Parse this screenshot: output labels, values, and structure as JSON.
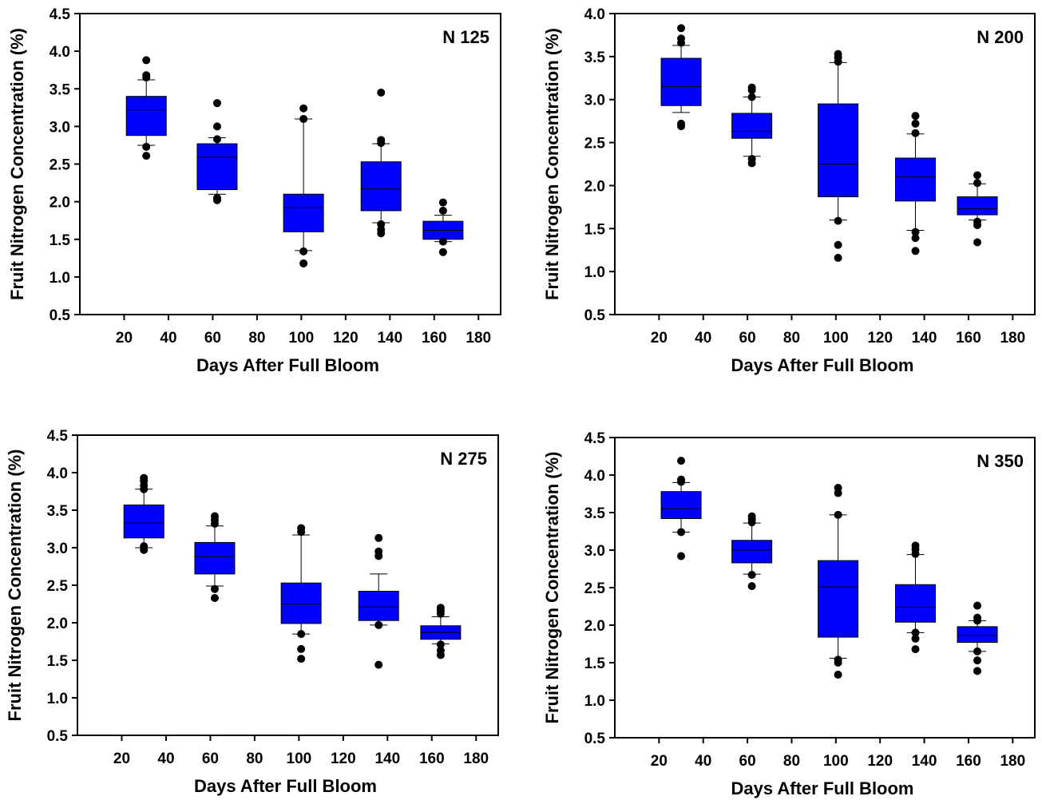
{
  "chart_data": [
    {
      "type": "box",
      "title": "N 125",
      "xlabel": "Days After Full Bloom",
      "ylabel": "Fruit Nitrogen Concentration (%)",
      "xlim": [
        0,
        190
      ],
      "ylim": [
        0.5,
        4.5
      ],
      "xticks": [
        20,
        40,
        60,
        80,
        100,
        120,
        140,
        160,
        180
      ],
      "yticks": [
        0.5,
        1.0,
        1.5,
        2.0,
        2.5,
        3.0,
        3.5,
        4.0,
        4.5
      ],
      "box_color": "#0000ff",
      "boxes": [
        {
          "x": 30,
          "q1": 2.88,
          "median": 3.22,
          "q3": 3.4,
          "whisker_low": 2.75,
          "whisker_high": 3.62,
          "outliers": [
            2.61,
            2.73,
            3.65,
            3.68,
            3.88
          ]
        },
        {
          "x": 62,
          "q1": 2.16,
          "median": 2.59,
          "q3": 2.77,
          "whisker_low": 2.1,
          "whisker_high": 2.85,
          "outliers": [
            2.02,
            2.05,
            2.83,
            3.0,
            3.31
          ]
        },
        {
          "x": 101,
          "q1": 1.6,
          "median": 1.92,
          "q3": 2.1,
          "whisker_low": 1.35,
          "whisker_high": 3.1,
          "outliers": [
            1.18,
            1.34,
            3.1,
            3.24
          ]
        },
        {
          "x": 136,
          "q1": 1.88,
          "median": 2.17,
          "q3": 2.53,
          "whisker_low": 1.72,
          "whisker_high": 2.77,
          "outliers": [
            1.58,
            1.63,
            1.7,
            2.78,
            2.82,
            3.45
          ]
        },
        {
          "x": 164,
          "q1": 1.5,
          "median": 1.62,
          "q3": 1.74,
          "whisker_low": 1.47,
          "whisker_high": 1.82,
          "outliers": [
            1.33,
            1.47,
            1.88,
            1.99
          ]
        }
      ]
    },
    {
      "type": "box",
      "title": "N 200",
      "xlabel": "Days After Full Bloom",
      "ylabel": "Fruit Nitrogen Concentration (%)",
      "xlim": [
        0,
        190
      ],
      "ylim": [
        0.5,
        4.0
      ],
      "xticks": [
        20,
        40,
        60,
        80,
        100,
        120,
        140,
        160,
        180
      ],
      "yticks": [
        0.5,
        1.0,
        1.5,
        2.0,
        2.5,
        3.0,
        3.5,
        4.0
      ],
      "box_color": "#0000ff",
      "boxes": [
        {
          "x": 30,
          "q1": 2.93,
          "median": 3.15,
          "q3": 3.48,
          "whisker_low": 2.85,
          "whisker_high": 3.63,
          "outliers": [
            2.69,
            2.72,
            3.66,
            3.71,
            3.83
          ]
        },
        {
          "x": 62,
          "q1": 2.55,
          "median": 2.63,
          "q3": 2.84,
          "whisker_low": 2.34,
          "whisker_high": 3.03,
          "outliers": [
            2.26,
            2.31,
            3.03,
            3.11,
            3.14
          ]
        },
        {
          "x": 101,
          "q1": 1.87,
          "median": 2.25,
          "q3": 2.95,
          "whisker_low": 1.6,
          "whisker_high": 3.43,
          "outliers": [
            1.16,
            1.31,
            1.59,
            3.44,
            3.49,
            3.53
          ]
        },
        {
          "x": 136,
          "q1": 1.82,
          "median": 2.1,
          "q3": 2.32,
          "whisker_low": 1.48,
          "whisker_high": 2.6,
          "outliers": [
            1.24,
            1.39,
            1.46,
            2.61,
            2.72,
            2.81
          ]
        },
        {
          "x": 164,
          "q1": 1.66,
          "median": 1.73,
          "q3": 1.87,
          "whisker_low": 1.6,
          "whisker_high": 2.02,
          "outliers": [
            1.34,
            1.54,
            1.58,
            2.03,
            2.12
          ]
        }
      ]
    },
    {
      "type": "box",
      "title": "N 275",
      "xlabel": "Days After Full Bloom",
      "ylabel": "Fruit Nitrogen Concentration (%)",
      "xlim": [
        0,
        190
      ],
      "ylim": [
        0.5,
        4.5
      ],
      "xticks": [
        20,
        40,
        60,
        80,
        100,
        120,
        140,
        160,
        180
      ],
      "yticks": [
        0.5,
        1.0,
        1.5,
        2.0,
        2.5,
        3.0,
        3.5,
        4.0,
        4.5
      ],
      "box_color": "#0000ff",
      "boxes": [
        {
          "x": 30,
          "q1": 3.13,
          "median": 3.33,
          "q3": 3.57,
          "whisker_low": 3.0,
          "whisker_high": 3.78,
          "outliers": [
            2.97,
            3.02,
            3.78,
            3.83,
            3.89,
            3.93
          ]
        },
        {
          "x": 62,
          "q1": 2.65,
          "median": 2.88,
          "q3": 3.07,
          "whisker_low": 2.49,
          "whisker_high": 3.29,
          "outliers": [
            2.33,
            2.45,
            3.32,
            3.37,
            3.42
          ]
        },
        {
          "x": 101,
          "q1": 1.99,
          "median": 2.25,
          "q3": 2.53,
          "whisker_low": 1.85,
          "whisker_high": 3.17,
          "outliers": [
            1.52,
            1.65,
            1.85,
            3.21,
            3.26
          ]
        },
        {
          "x": 136,
          "q1": 2.03,
          "median": 2.21,
          "q3": 2.42,
          "whisker_low": 1.97,
          "whisker_high": 2.65,
          "outliers": [
            1.44,
            1.97,
            2.89,
            2.95,
            3.13
          ]
        },
        {
          "x": 164,
          "q1": 1.78,
          "median": 1.87,
          "q3": 1.96,
          "whisker_low": 1.72,
          "whisker_high": 2.08,
          "outliers": [
            1.57,
            1.63,
            1.71,
            2.12,
            2.16,
            2.2
          ]
        }
      ]
    },
    {
      "type": "box",
      "title": "N 350",
      "xlabel": "Days After Full Bloom",
      "ylabel": "Fruit Nitrogen Concentration (%)",
      "xlim": [
        0,
        190
      ],
      "ylim": [
        0.5,
        4.5
      ],
      "xticks": [
        20,
        40,
        60,
        80,
        100,
        120,
        140,
        160,
        180
      ],
      "yticks": [
        0.5,
        1.0,
        1.5,
        2.0,
        2.5,
        3.0,
        3.5,
        4.0,
        4.5
      ],
      "box_color": "#0000ff",
      "boxes": [
        {
          "x": 30,
          "q1": 3.42,
          "median": 3.55,
          "q3": 3.78,
          "whisker_low": 3.24,
          "whisker_high": 3.9,
          "outliers": [
            2.92,
            3.24,
            3.91,
            3.94,
            4.19
          ]
        },
        {
          "x": 62,
          "q1": 2.83,
          "median": 3.0,
          "q3": 3.13,
          "whisker_low": 2.68,
          "whisker_high": 3.36,
          "outliers": [
            2.52,
            2.67,
            3.37,
            3.41,
            3.45
          ]
        },
        {
          "x": 101,
          "q1": 1.84,
          "median": 2.51,
          "q3": 2.86,
          "whisker_low": 1.56,
          "whisker_high": 3.47,
          "outliers": [
            1.34,
            1.5,
            1.54,
            3.47,
            3.76,
            3.83
          ]
        },
        {
          "x": 136,
          "q1": 2.04,
          "median": 2.24,
          "q3": 2.54,
          "whisker_low": 1.9,
          "whisker_high": 2.94,
          "outliers": [
            1.68,
            1.82,
            1.9,
            2.95,
            3.01,
            3.06
          ]
        },
        {
          "x": 164,
          "q1": 1.77,
          "median": 1.86,
          "q3": 1.98,
          "whisker_low": 1.65,
          "whisker_high": 2.06,
          "outliers": [
            1.39,
            1.53,
            1.65,
            2.06,
            2.1,
            2.26
          ]
        }
      ]
    }
  ]
}
